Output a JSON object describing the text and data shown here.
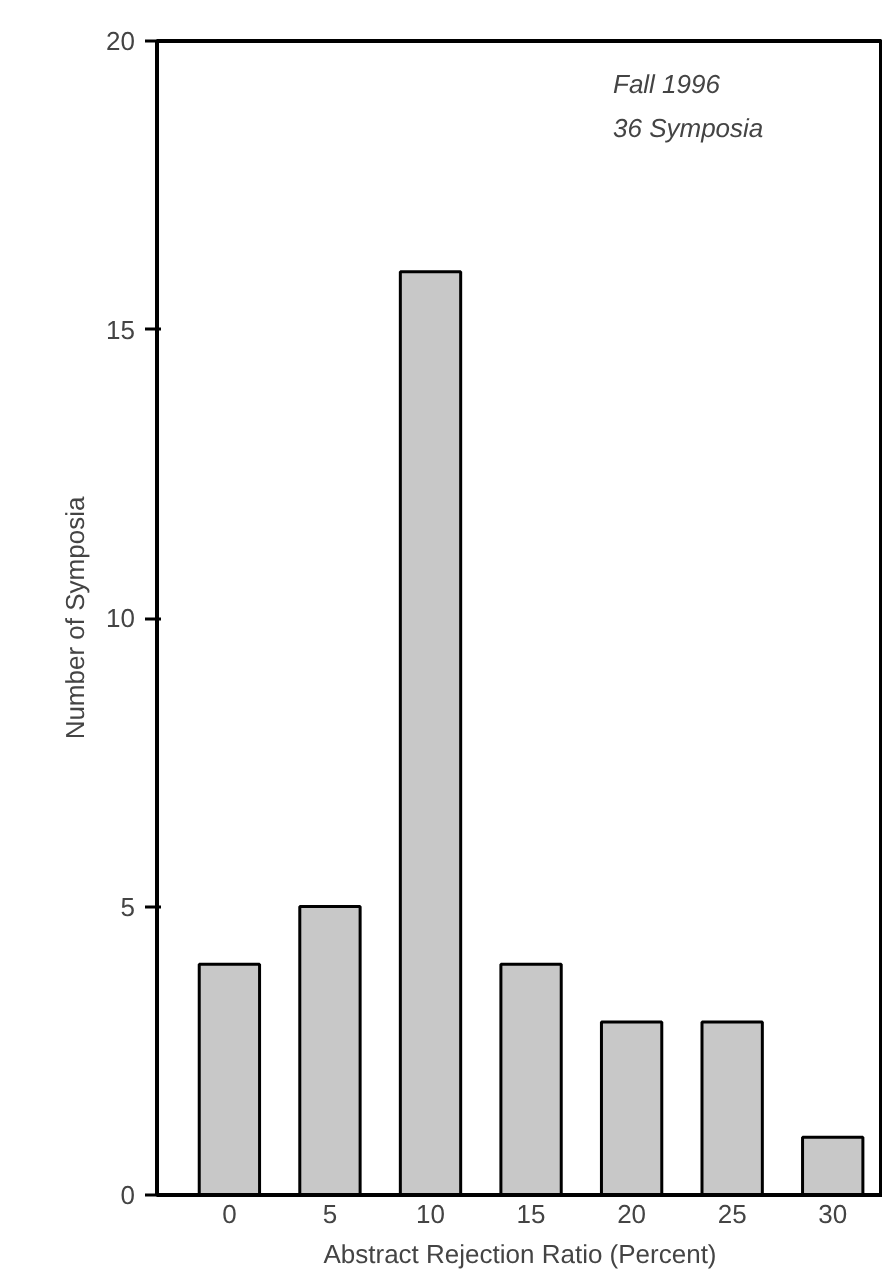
{
  "chart_data": {
    "type": "bar",
    "xlabel": "Abstract Rejection Ratio (Percent)",
    "ylabel": "Number of Symposia",
    "categories": [
      "0",
      "5",
      "10",
      "15",
      "20",
      "25",
      "30"
    ],
    "values": [
      4,
      5,
      16,
      4,
      3,
      3,
      1
    ],
    "color": "#c8c8c8",
    "ylim": [
      0,
      20
    ],
    "yticks": [
      0,
      5,
      10,
      15,
      20
    ],
    "grid": false,
    "annotations": [
      "Fall 1996",
      "36 Symposia"
    ]
  }
}
